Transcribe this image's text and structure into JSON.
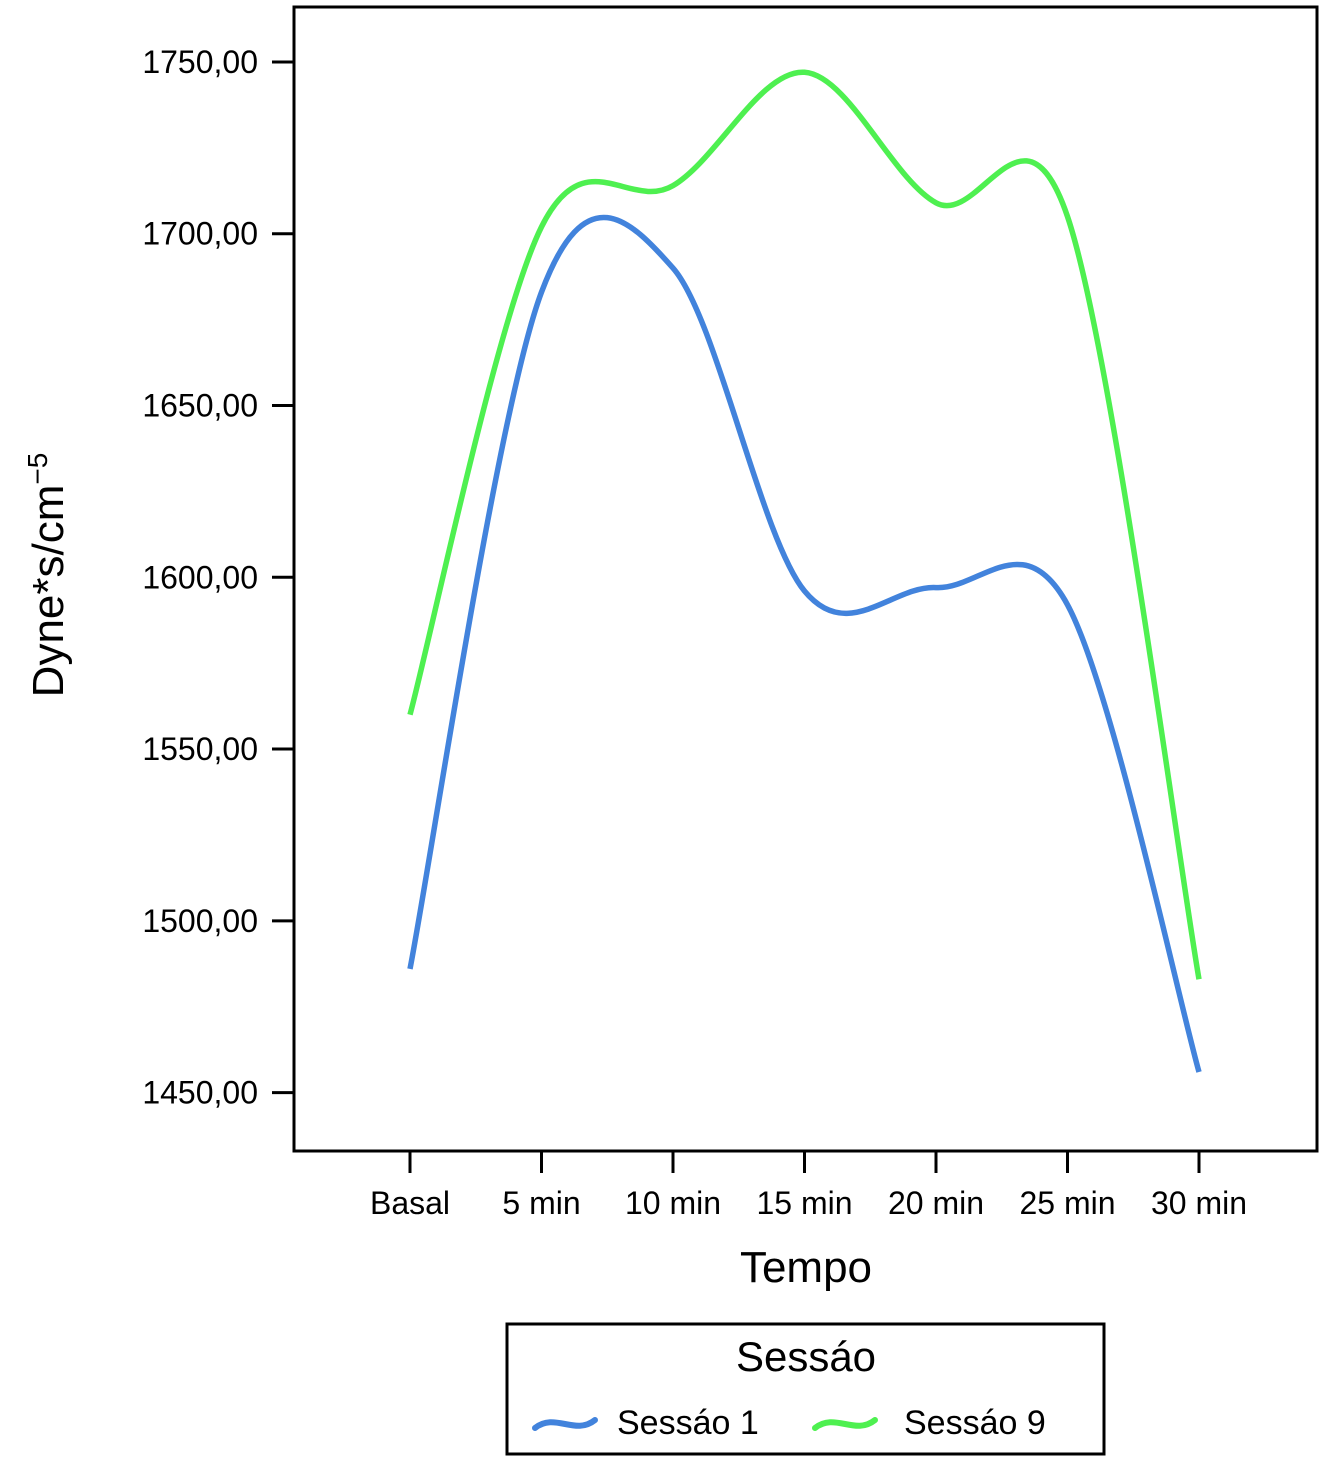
{
  "chart_data": {
    "type": "line",
    "categories": [
      "Basal",
      "5 min",
      "10 min",
      "15 min",
      "20 min",
      "25 min",
      "30 min"
    ],
    "xlabel": "Tempo",
    "ylabel": "Dyne*s/cm",
    "ylabel_superscript": "−5",
    "y_ticks": [
      {
        "value": 1450,
        "label": "1450,00"
      },
      {
        "value": 1500,
        "label": "1500,00"
      },
      {
        "value": 1550,
        "label": "1550,00"
      },
      {
        "value": 1600,
        "label": "1600,00"
      },
      {
        "value": 1650,
        "label": "1650,00"
      },
      {
        "value": 1700,
        "label": "1700,00"
      },
      {
        "value": 1750,
        "label": "1750,00"
      }
    ],
    "ylim": [
      1433,
      1766
    ],
    "smoothed": true,
    "grid": false,
    "series": [
      {
        "name": "Sessáo 1",
        "color": "#4283dc",
        "values": [
          1486,
          1683,
          1690,
          1596,
          1597,
          1592,
          1456
        ]
      },
      {
        "name": "Sessáo 9",
        "color": "#4ef050",
        "values": [
          1560,
          1702,
          1714,
          1747,
          1709,
          1705,
          1483
        ]
      }
    ],
    "legend": {
      "title": "Sessáo",
      "position": "bottom-center"
    }
  }
}
